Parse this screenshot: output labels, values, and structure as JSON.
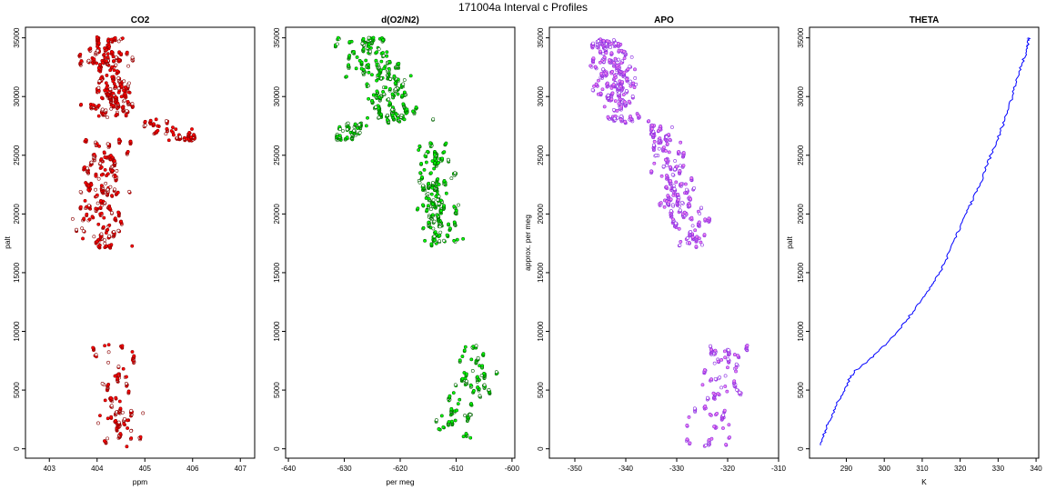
{
  "figure_title": "171004a   Interval c Profiles",
  "chart_data": [
    {
      "type": "scatter",
      "title": "CO2",
      "xlabel": "ppm",
      "ylabel": "palt",
      "xlim": [
        402.5,
        407.3
      ],
      "ylim": [
        -800,
        35900
      ],
      "xticks": [
        403,
        404,
        405,
        406,
        407
      ],
      "yticks": [
        0,
        5000,
        10000,
        15000,
        20000,
        25000,
        30000,
        35000
      ],
      "point_color": "#ff0000",
      "edge_color": "#8b0000",
      "segments": [
        {
          "y0": 200,
          "y1": 8900,
          "xmin": 403.3,
          "xmax": 405.6,
          "xc0": 404.5,
          "xc1": 404.4,
          "spread": 0.45,
          "n": 150
        },
        {
          "y0": 17200,
          "y1": 26300,
          "xmin": 403.2,
          "xmax": 405.5,
          "xc0": 404.1,
          "xc1": 404.2,
          "spread": 0.45,
          "n": 300
        },
        {
          "y0": 26300,
          "y1": 28200,
          "xmin": 403.5,
          "xmax": 407.2,
          "xc0": 405.8,
          "xc1": 405.0,
          "spread": 0.45,
          "n": 80
        },
        {
          "y0": 28200,
          "y1": 35000,
          "xmin": 402.6,
          "xmax": 405.6,
          "xc0": 404.4,
          "xc1": 404.2,
          "spread": 0.5,
          "n": 350
        }
      ]
    },
    {
      "type": "scatter",
      "title": "d(O2/N2)",
      "xlabel": "per meg",
      "ylabel": "",
      "xlim": [
        -640.5,
        -599.5
      ],
      "ylim": [
        -800,
        35900
      ],
      "xticks": [
        -640,
        -630,
        -620,
        -610,
        -600
      ],
      "yticks": [
        0,
        5000,
        10000,
        15000,
        20000,
        25000,
        30000,
        35000
      ],
      "point_color": "#00ff00",
      "edge_color": "#006400",
      "segments": [
        {
          "y0": 200,
          "y1": 8900,
          "xmin": -623,
          "xmax": -600.5,
          "xc0": -610,
          "xc1": -606,
          "spread": 3.5,
          "n": 150
        },
        {
          "y0": 17200,
          "y1": 26000,
          "xmin": -622,
          "xmax": -603,
          "xc0": -612,
          "xc1": -615,
          "spread": 3.5,
          "n": 300
        },
        {
          "y0": 26300,
          "y1": 27800,
          "xmin": -640,
          "xmax": -622,
          "xc0": -630,
          "xc1": -628,
          "spread": 3.5,
          "n": 80
        },
        {
          "y0": 27800,
          "y1": 35000,
          "xmin": -638,
          "xmax": -610,
          "xc0": -620,
          "xc1": -627,
          "spread": 4.5,
          "n": 350
        }
      ]
    },
    {
      "type": "scatter",
      "title": "APO",
      "xlabel": "",
      "ylabel": "approx. per meg",
      "xlim": [
        -355,
        -310
      ],
      "ylim": [
        -800,
        35900
      ],
      "xticks": [
        -350,
        -340,
        -330,
        -320,
        -310
      ],
      "yticks": [
        0,
        5000,
        10000,
        15000,
        20000,
        25000,
        30000,
        35000
      ],
      "point_color": "#ee82ee",
      "edge_color": "#8a2be2",
      "segments": [
        {
          "y0": 200,
          "y1": 8900,
          "xmin": -340,
          "xmax": -313,
          "xc0": -324,
          "xc1": -320,
          "spread": 4,
          "n": 150
        },
        {
          "y0": 17200,
          "y1": 27800,
          "xmin": -335,
          "xmax": -316,
          "xc0": -326,
          "xc1": -334,
          "spread": 3.5,
          "n": 330
        },
        {
          "y0": 27800,
          "y1": 35000,
          "xmin": -352,
          "xmax": -333,
          "xc0": -340,
          "xc1": -344,
          "spread": 4,
          "n": 380
        }
      ]
    },
    {
      "type": "line",
      "title": "THETA",
      "xlabel": "K",
      "ylabel": "palt",
      "xlim": [
        280.3,
        340.7
      ],
      "ylim": [
        -800,
        35900
      ],
      "xticks": [
        290,
        300,
        310,
        320,
        330,
        340
      ],
      "yticks": [
        0,
        5000,
        10000,
        15000,
        20000,
        25000,
        30000,
        35000
      ],
      "line_color": "#0000ff",
      "series": [
        {
          "x": [
            283.2,
            283.9,
            284.6,
            285.2,
            286.4,
            287.5,
            289.0,
            289.9,
            290.9,
            292.1,
            293.9,
            296.0,
            298.5,
            301.0,
            303.5,
            306.0,
            308.2,
            310.2,
            312.0,
            313.0,
            314.5,
            316.0,
            317.3,
            318.5,
            320.0,
            321.0,
            322.0,
            323.5,
            325.0,
            326.0,
            327.0,
            328.2,
            329.5,
            330.7,
            331.8,
            332.8,
            333.8,
            334.7,
            335.5,
            336.4,
            337.3,
            337.6,
            337.9,
            338.1,
            338.2
          ],
          "y": [
            300,
            1000,
            1600,
            2200,
            3000,
            3800,
            4600,
            5300,
            6000,
            6600,
            7000,
            7600,
            8300,
            9100,
            10000,
            11000,
            12000,
            12900,
            13600,
            14200,
            15000,
            15900,
            16900,
            17900,
            18900,
            19700,
            20400,
            21300,
            22300,
            23200,
            24100,
            25100,
            26100,
            27100,
            28100,
            29100,
            30100,
            31100,
            32000,
            32900,
            33700,
            34200,
            34500,
            34800,
            35000
          ]
        }
      ]
    }
  ]
}
